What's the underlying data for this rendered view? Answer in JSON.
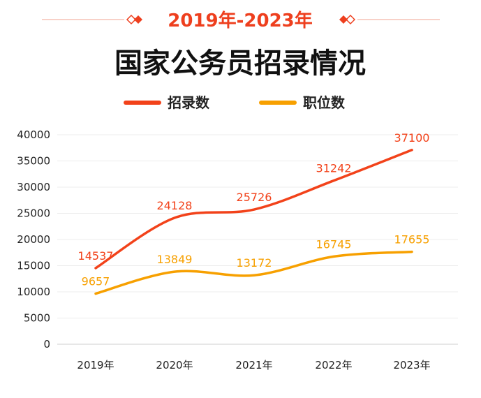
{
  "header": {
    "subtitle": "2019年-2023年",
    "title": "国家公务员招录情况"
  },
  "colors": {
    "accent": "#ee3f1e",
    "series1": "#f2421a",
    "series2": "#f7a000",
    "grid": "#ececec"
  },
  "chart_data": {
    "type": "line",
    "categories": [
      "2019年",
      "2020年",
      "2021年",
      "2022年",
      "2023年"
    ],
    "series": [
      {
        "name": "招录数",
        "values": [
          14537,
          24128,
          25726,
          31242,
          37100
        ]
      },
      {
        "name": "职位数",
        "values": [
          9657,
          13849,
          13172,
          16745,
          17655
        ]
      }
    ],
    "yticks": [
      0,
      5000,
      10000,
      15000,
      20000,
      25000,
      30000,
      35000,
      40000
    ],
    "ylim": [
      0,
      40000
    ],
    "grid": true,
    "legend_position": "top-center",
    "smooth": true
  }
}
